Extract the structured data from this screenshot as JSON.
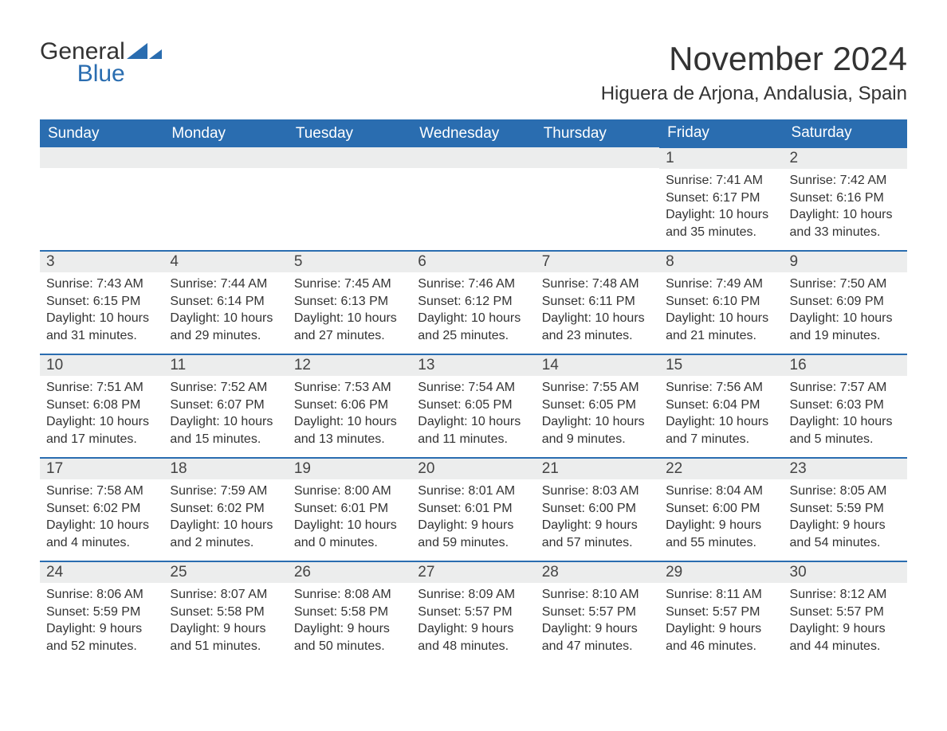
{
  "brand": {
    "word1": "General",
    "word2": "Blue",
    "word1_color": "#333333",
    "word2_color": "#2a6db0",
    "mark_color": "#2a6db0"
  },
  "header": {
    "month_title": "November 2024",
    "location": "Higuera de Arjona, Andalusia, Spain"
  },
  "calendar": {
    "header_bg": "#2a6db0",
    "header_fg": "#ffffff",
    "daynum_bg": "#eceded",
    "row_border_color": "#2a6db0",
    "text_color": "#333333",
    "day_headers": [
      "Sunday",
      "Monday",
      "Tuesday",
      "Wednesday",
      "Thursday",
      "Friday",
      "Saturday"
    ],
    "weeks": [
      [
        {
          "empty": true
        },
        {
          "empty": true
        },
        {
          "empty": true
        },
        {
          "empty": true
        },
        {
          "empty": true
        },
        {
          "num": "1",
          "sunrise": "Sunrise: 7:41 AM",
          "sunset": "Sunset: 6:17 PM",
          "daylight": "Daylight: 10 hours and 35 minutes."
        },
        {
          "num": "2",
          "sunrise": "Sunrise: 7:42 AM",
          "sunset": "Sunset: 6:16 PM",
          "daylight": "Daylight: 10 hours and 33 minutes."
        }
      ],
      [
        {
          "num": "3",
          "sunrise": "Sunrise: 7:43 AM",
          "sunset": "Sunset: 6:15 PM",
          "daylight": "Daylight: 10 hours and 31 minutes."
        },
        {
          "num": "4",
          "sunrise": "Sunrise: 7:44 AM",
          "sunset": "Sunset: 6:14 PM",
          "daylight": "Daylight: 10 hours and 29 minutes."
        },
        {
          "num": "5",
          "sunrise": "Sunrise: 7:45 AM",
          "sunset": "Sunset: 6:13 PM",
          "daylight": "Daylight: 10 hours and 27 minutes."
        },
        {
          "num": "6",
          "sunrise": "Sunrise: 7:46 AM",
          "sunset": "Sunset: 6:12 PM",
          "daylight": "Daylight: 10 hours and 25 minutes."
        },
        {
          "num": "7",
          "sunrise": "Sunrise: 7:48 AM",
          "sunset": "Sunset: 6:11 PM",
          "daylight": "Daylight: 10 hours and 23 minutes."
        },
        {
          "num": "8",
          "sunrise": "Sunrise: 7:49 AM",
          "sunset": "Sunset: 6:10 PM",
          "daylight": "Daylight: 10 hours and 21 minutes."
        },
        {
          "num": "9",
          "sunrise": "Sunrise: 7:50 AM",
          "sunset": "Sunset: 6:09 PM",
          "daylight": "Daylight: 10 hours and 19 minutes."
        }
      ],
      [
        {
          "num": "10",
          "sunrise": "Sunrise: 7:51 AM",
          "sunset": "Sunset: 6:08 PM",
          "daylight": "Daylight: 10 hours and 17 minutes."
        },
        {
          "num": "11",
          "sunrise": "Sunrise: 7:52 AM",
          "sunset": "Sunset: 6:07 PM",
          "daylight": "Daylight: 10 hours and 15 minutes."
        },
        {
          "num": "12",
          "sunrise": "Sunrise: 7:53 AM",
          "sunset": "Sunset: 6:06 PM",
          "daylight": "Daylight: 10 hours and 13 minutes."
        },
        {
          "num": "13",
          "sunrise": "Sunrise: 7:54 AM",
          "sunset": "Sunset: 6:05 PM",
          "daylight": "Daylight: 10 hours and 11 minutes."
        },
        {
          "num": "14",
          "sunrise": "Sunrise: 7:55 AM",
          "sunset": "Sunset: 6:05 PM",
          "daylight": "Daylight: 10 hours and 9 minutes."
        },
        {
          "num": "15",
          "sunrise": "Sunrise: 7:56 AM",
          "sunset": "Sunset: 6:04 PM",
          "daylight": "Daylight: 10 hours and 7 minutes."
        },
        {
          "num": "16",
          "sunrise": "Sunrise: 7:57 AM",
          "sunset": "Sunset: 6:03 PM",
          "daylight": "Daylight: 10 hours and 5 minutes."
        }
      ],
      [
        {
          "num": "17",
          "sunrise": "Sunrise: 7:58 AM",
          "sunset": "Sunset: 6:02 PM",
          "daylight": "Daylight: 10 hours and 4 minutes."
        },
        {
          "num": "18",
          "sunrise": "Sunrise: 7:59 AM",
          "sunset": "Sunset: 6:02 PM",
          "daylight": "Daylight: 10 hours and 2 minutes."
        },
        {
          "num": "19",
          "sunrise": "Sunrise: 8:00 AM",
          "sunset": "Sunset: 6:01 PM",
          "daylight": "Daylight: 10 hours and 0 minutes."
        },
        {
          "num": "20",
          "sunrise": "Sunrise: 8:01 AM",
          "sunset": "Sunset: 6:01 PM",
          "daylight": "Daylight: 9 hours and 59 minutes."
        },
        {
          "num": "21",
          "sunrise": "Sunrise: 8:03 AM",
          "sunset": "Sunset: 6:00 PM",
          "daylight": "Daylight: 9 hours and 57 minutes."
        },
        {
          "num": "22",
          "sunrise": "Sunrise: 8:04 AM",
          "sunset": "Sunset: 6:00 PM",
          "daylight": "Daylight: 9 hours and 55 minutes."
        },
        {
          "num": "23",
          "sunrise": "Sunrise: 8:05 AM",
          "sunset": "Sunset: 5:59 PM",
          "daylight": "Daylight: 9 hours and 54 minutes."
        }
      ],
      [
        {
          "num": "24",
          "sunrise": "Sunrise: 8:06 AM",
          "sunset": "Sunset: 5:59 PM",
          "daylight": "Daylight: 9 hours and 52 minutes."
        },
        {
          "num": "25",
          "sunrise": "Sunrise: 8:07 AM",
          "sunset": "Sunset: 5:58 PM",
          "daylight": "Daylight: 9 hours and 51 minutes."
        },
        {
          "num": "26",
          "sunrise": "Sunrise: 8:08 AM",
          "sunset": "Sunset: 5:58 PM",
          "daylight": "Daylight: 9 hours and 50 minutes."
        },
        {
          "num": "27",
          "sunrise": "Sunrise: 8:09 AM",
          "sunset": "Sunset: 5:57 PM",
          "daylight": "Daylight: 9 hours and 48 minutes."
        },
        {
          "num": "28",
          "sunrise": "Sunrise: 8:10 AM",
          "sunset": "Sunset: 5:57 PM",
          "daylight": "Daylight: 9 hours and 47 minutes."
        },
        {
          "num": "29",
          "sunrise": "Sunrise: 8:11 AM",
          "sunset": "Sunset: 5:57 PM",
          "daylight": "Daylight: 9 hours and 46 minutes."
        },
        {
          "num": "30",
          "sunrise": "Sunrise: 8:12 AM",
          "sunset": "Sunset: 5:57 PM",
          "daylight": "Daylight: 9 hours and 44 minutes."
        }
      ]
    ]
  }
}
